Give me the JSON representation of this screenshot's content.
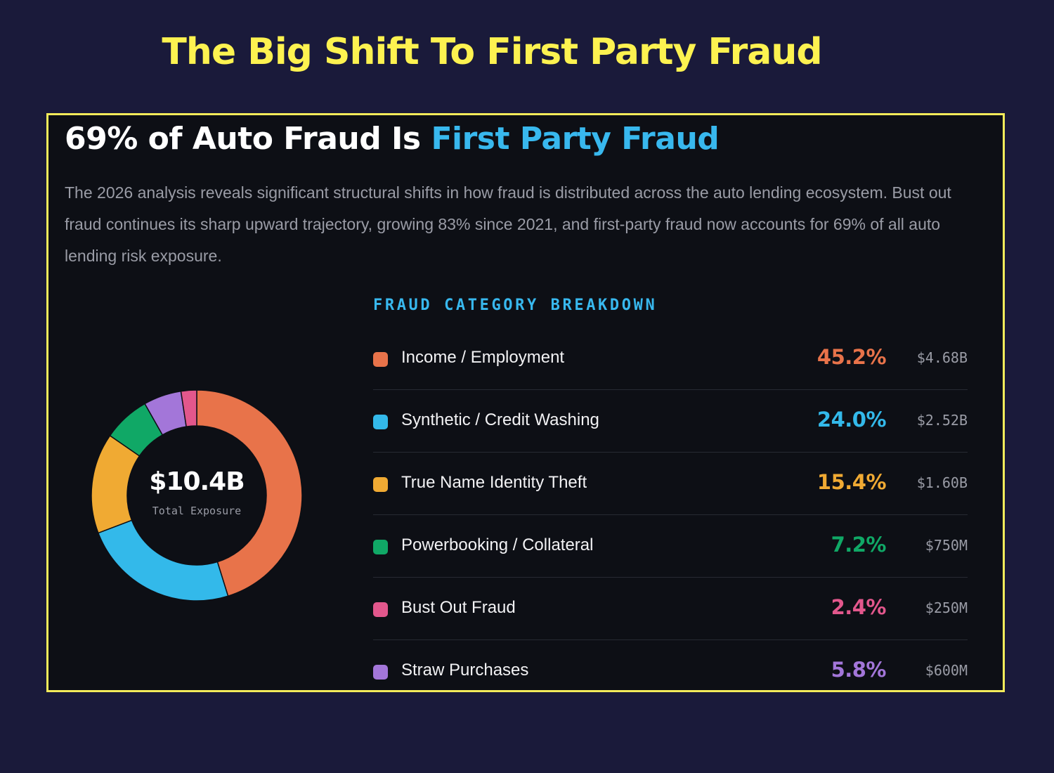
{
  "page_title": "The Big Shift To First Party Fraud",
  "panel": {
    "headline_prefix": "69% of Auto Fraud Is ",
    "headline_accent": "First Party Fraud",
    "description": "The 2026 analysis reveals significant structural shifts in how fraud is distributed across the auto lending ecosystem. Bust out fraud continues its sharp upward trajectory, growing 83% since 2021, and first-party fraud now accounts for 69% of all auto lending risk exposure."
  },
  "colors": {
    "page_background": "#1a1a3a",
    "panel_background": "#0d0f15",
    "panel_border": "#f3eb5a",
    "title_yellow": "#fdf250",
    "accent_blue": "#38b8ee"
  },
  "chart_data": {
    "type": "pie",
    "variant": "donut",
    "center_value": "$10.4B",
    "center_label": "Total Exposure",
    "breakdown_heading": "FRAUD CATEGORY BREAKDOWN",
    "categories": [
      "Income / Employment",
      "Synthetic / Credit Washing",
      "True Name Identity Theft",
      "Powerbooking / Collateral",
      "Straw Purchases",
      "Bust Out Fraud"
    ],
    "values": [
      45.2,
      24.0,
      15.4,
      7.2,
      5.8,
      2.4
    ],
    "colors": [
      "#e8734a",
      "#33b9ea",
      "#f0aa33",
      "#10a866",
      "#a376d9",
      "#e2578c"
    ],
    "legend_rows": [
      {
        "label": "Income / Employment",
        "percent": "45.2%",
        "amount": "$4.68B",
        "color": "#e8734a"
      },
      {
        "label": "Synthetic / Credit Washing",
        "percent": "24.0%",
        "amount": "$2.52B",
        "color": "#33b9ea"
      },
      {
        "label": "True Name Identity Theft",
        "percent": "15.4%",
        "amount": "$1.60B",
        "color": "#f0aa33"
      },
      {
        "label": "Powerbooking / Collateral",
        "percent": "7.2%",
        "amount": "$750M",
        "color": "#10a866"
      },
      {
        "label": "Bust Out Fraud",
        "percent": "2.4%",
        "amount": "$250M",
        "color": "#e2578c"
      },
      {
        "label": "Straw Purchases",
        "percent": "5.8%",
        "amount": "$600M",
        "color": "#a376d9"
      }
    ]
  }
}
